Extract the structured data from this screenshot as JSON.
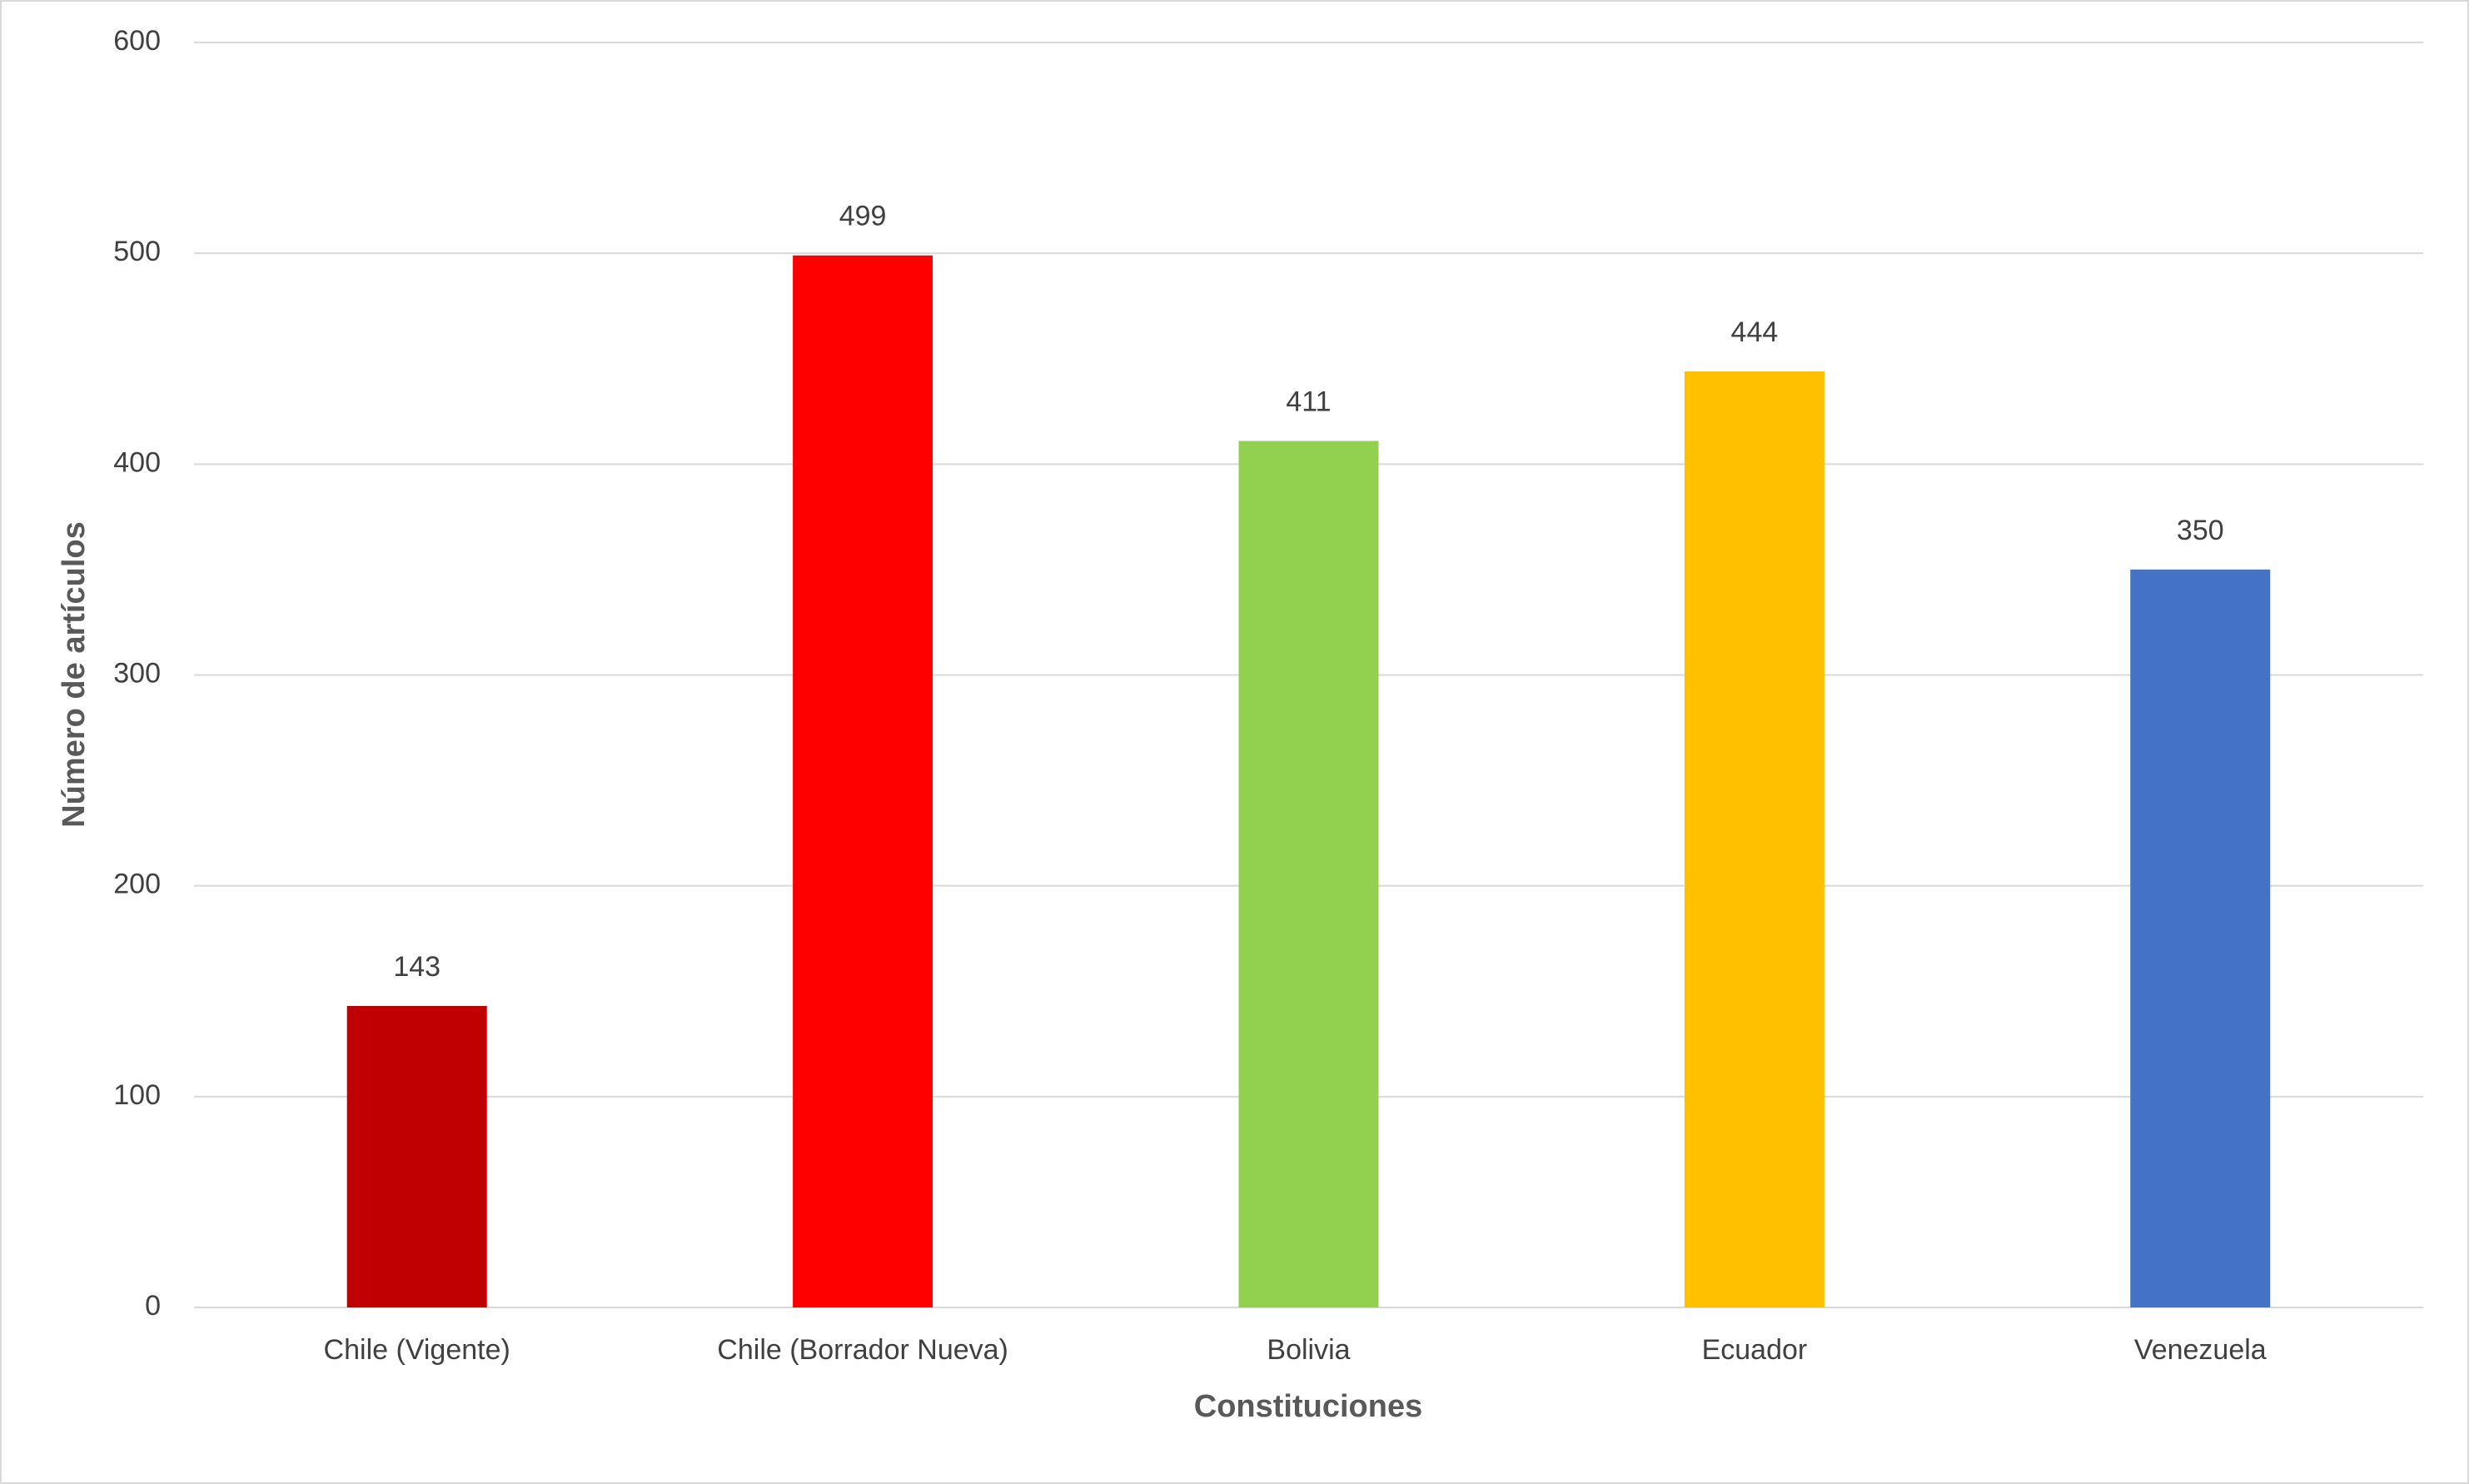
{
  "chart_data": {
    "type": "bar",
    "x_label": "Constituciones",
    "y_label": "Número de artículos",
    "categories": [
      "Chile (Vigente)",
      "Chile (Borrador Nueva)",
      "Bolivia",
      "Ecuador",
      "Venezuela"
    ],
    "values": [
      143,
      499,
      411,
      444,
      350
    ],
    "colors": [
      "#c00000",
      "#ff0000",
      "#92d050",
      "#ffc000",
      "#4472c4"
    ],
    "ylim": [
      0,
      600
    ],
    "yticks": [
      0,
      100,
      200,
      300,
      400,
      500,
      600
    ],
    "grid": true
  }
}
